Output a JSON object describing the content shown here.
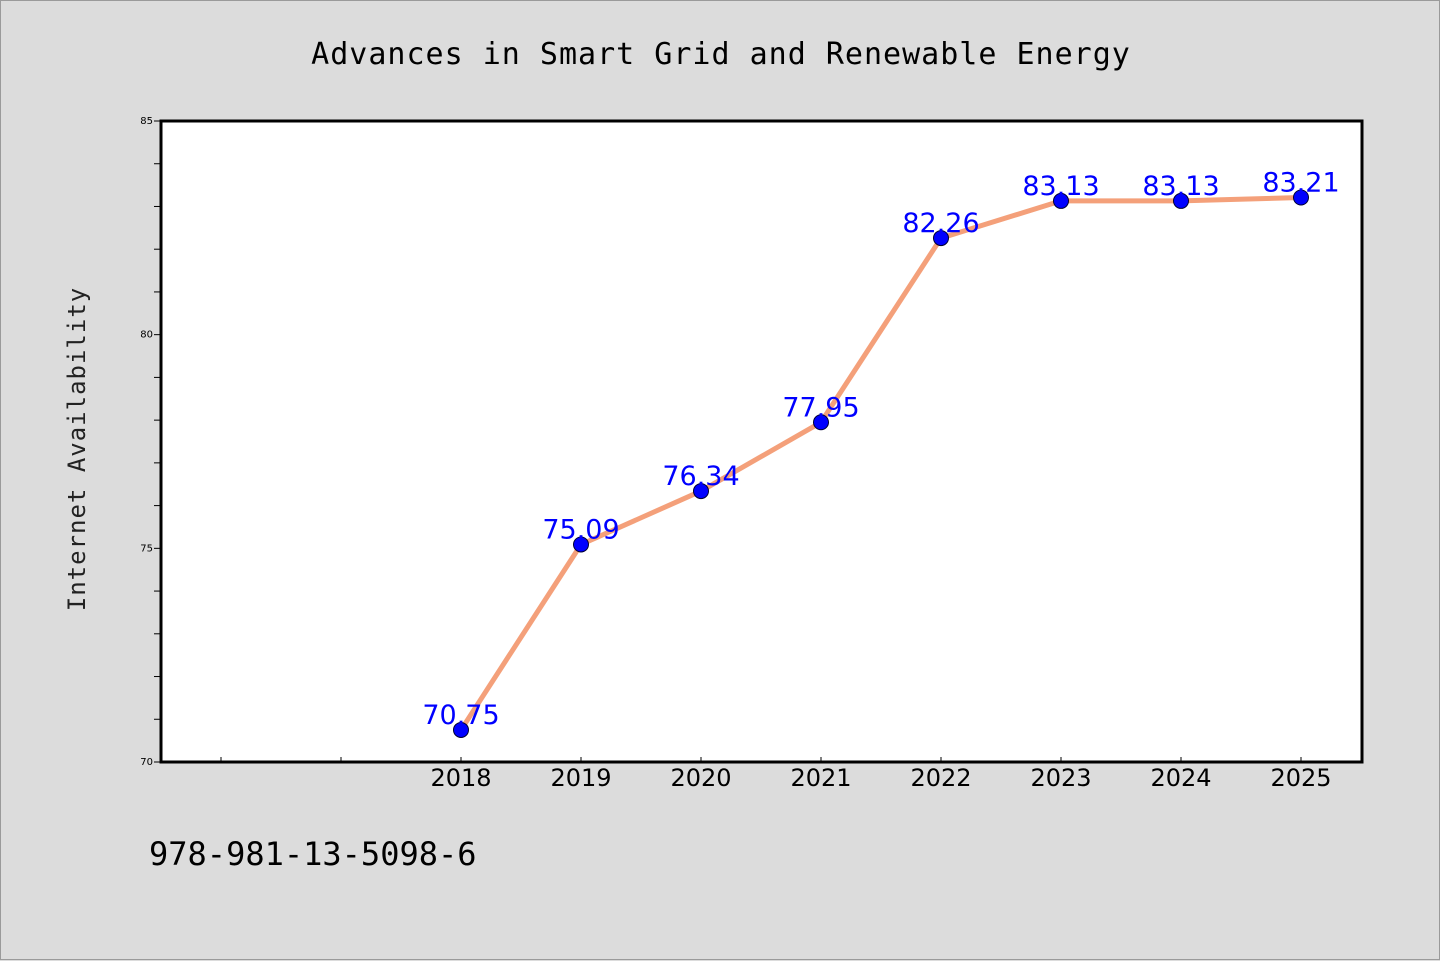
{
  "chart_data": {
    "type": "line",
    "title": "Advances in Smart Grid and Renewable Energy",
    "xlabel": "",
    "ylabel": "Internet Availability",
    "categories": [
      "2018",
      "2019",
      "2020",
      "2021",
      "2022",
      "2023",
      "2024",
      "2025"
    ],
    "series": [
      {
        "values": [
          70.75,
          75.09,
          76.34,
          77.95,
          82.26,
          83.13,
          83.13,
          83.21
        ],
        "data_labels": [
          "70.75",
          "75.09",
          "76.34",
          "77.95",
          "82.26",
          "83.13",
          "83.13",
          "83.21"
        ]
      }
    ],
    "ylim": [
      70,
      85
    ],
    "yticks": [
      "70",
      "75",
      "80",
      "85"
    ],
    "grid": false,
    "line_color": "#f4a07a",
    "marker_color": "#0000ff",
    "data_label_color": "#0000ff",
    "background_color": "#dcdcdc",
    "plot_background_color": "#ffffff"
  },
  "footer": {
    "isbn": "978-981-13-5098-6"
  }
}
